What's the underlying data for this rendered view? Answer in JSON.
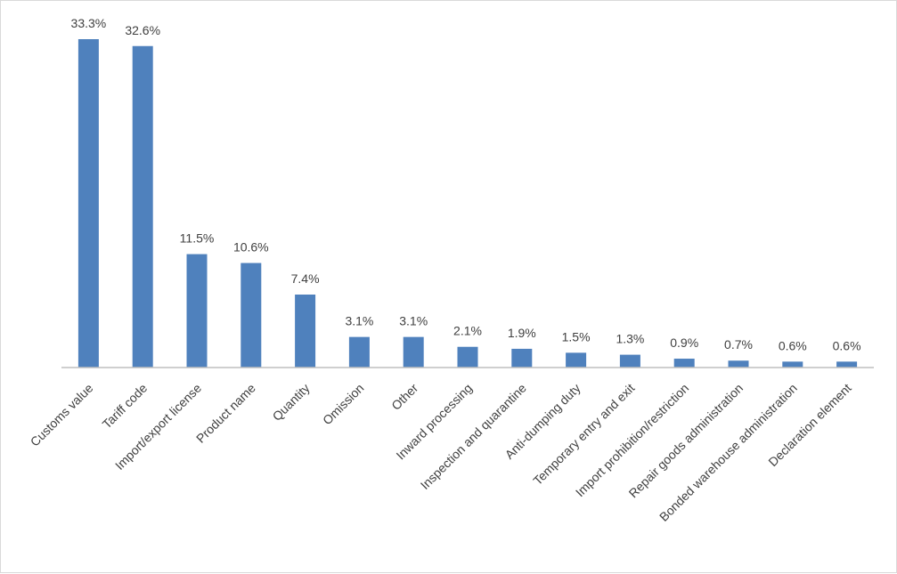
{
  "chart_data": {
    "type": "bar",
    "title": "",
    "xlabel": "",
    "ylabel": "",
    "ylim": [
      0,
      35
    ],
    "grid": false,
    "legend": "none",
    "bar_color": "#4f81bd",
    "categories": [
      "Customs value",
      "Tariff code",
      "Import/export license",
      "Product name",
      "Quantity",
      "Omission",
      "Other",
      "Inward processing",
      "Inspection and quarantine",
      "Anti-dumping duty",
      "Temporary entry and exit",
      "Import prohibition/restriction",
      "Repair goods administration",
      "Bonded warehouse administration",
      "Declaration element"
    ],
    "values": [
      33.3,
      32.6,
      11.5,
      10.6,
      7.4,
      3.1,
      3.1,
      2.1,
      1.9,
      1.5,
      1.3,
      0.9,
      0.7,
      0.6,
      0.6
    ],
    "data_labels": [
      "33.3%",
      "32.6%",
      "11.5%",
      "10.6%",
      "7.4%",
      "3.1%",
      "3.1%",
      "2.1%",
      "1.9%",
      "1.5%",
      "1.3%",
      "0.9%",
      "0.7%",
      "0.6%",
      "0.6%"
    ]
  }
}
